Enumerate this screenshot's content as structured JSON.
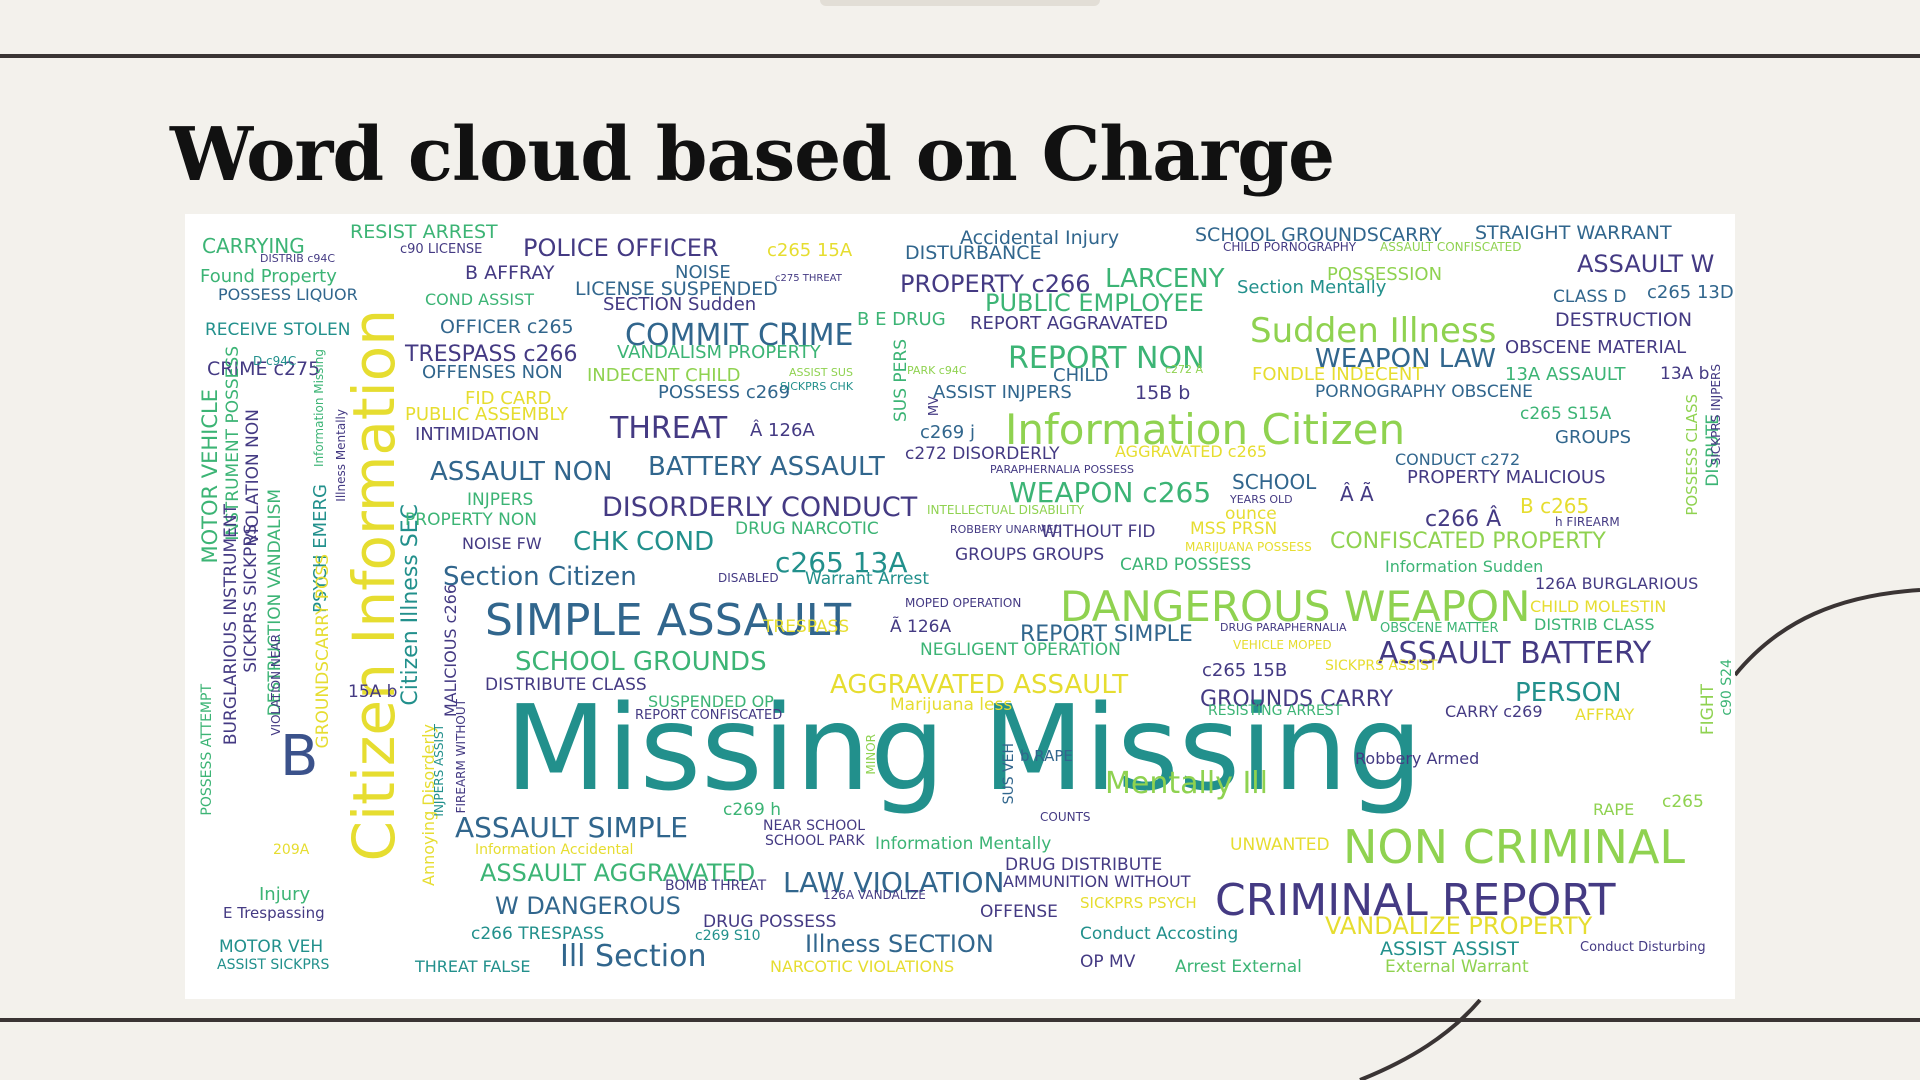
{
  "slide": {
    "title": "Word cloud based on Charge"
  },
  "palette": {
    "yellow": "#e6dd30",
    "light_green": "#8fd250",
    "green": "#3cb475",
    "teal": "#22908c",
    "blue": "#31668d",
    "indigo": "#443a83",
    "purple": "#440154",
    "mid_green": "#5ec862",
    "steel": "#3b528b",
    "bg_white": "#ffffff",
    "slide_bg": "#f3f1ec",
    "rule": "#3a3434"
  },
  "cloud": {
    "words": [
      "Missing Missing",
      "Citizen Information",
      "SIMPLE ASSAULT",
      "DANGEROUS WEAPON",
      "Information Citizen",
      "CRIMINAL REPORT",
      "NON CRIMINAL",
      "Sudden Illness",
      "B",
      "COMMIT CRIME",
      "ASSAULT BATTERY",
      "Mentally Ill",
      "DISORDERLY CONDUCT",
      "REPORT NON",
      "Ill Section",
      "Section Citizen",
      "SCHOOL GROUNDS",
      "AGGRAVATED ASSAULT",
      "ASSAULT SIMPLE",
      "LAW VIOLATION",
      "BATTERY ASSAULT",
      "THREAT",
      "c265 13A",
      "WEAPON c265",
      "ASSAULT NON",
      "ASSAULT AGGRAVATED",
      "WEAPON LAW",
      "POLICE OFFICER",
      "PUBLIC EMPLOYEE",
      "LARCENY",
      "CHK COND",
      "W DANGEROUS",
      "PROPERTY c266",
      "Illness SECTION",
      "ASSAULT W",
      "CONFISCATED PROPERTY",
      "TRESPASS c266",
      "PERSON",
      "GROUNDS CARRY",
      "REPORT SIMPLE",
      "VANDALIZE PROPERTY",
      "Citizen Illness SEC",
      "MOTOR VEHICLE",
      "CARRYING",
      "RESIST ARREST",
      "Accidental Injury",
      "SCHOOL GROUNDSCARRY",
      "STRAIGHT WARRANT",
      "DISTURBANCE",
      "c265 15A",
      "B AFFRAY",
      "NOISE",
      "Found Property",
      "POSSESS LIQUOR",
      "LICENSE SUSPENDED",
      "SECTION Sudden",
      "COND ASSIST",
      "RECEIVE STOLEN",
      "OFFICER c265",
      "VANDALISM PROPERTY",
      "B E DRUG",
      "REPORT AGGRAVATED",
      "DESTRUCTION",
      "OBSCENE MATERIAL",
      "CRIME c275",
      "OFFENSES NON",
      "INDECENT CHILD",
      "CHILD",
      "FONDLE INDECENT",
      "13A ASSAULT",
      "POSSESS c269",
      "ASSIST INJPERS",
      "15B b",
      "PORNOGRAPHY OBSCENE",
      "FID CARD",
      "PUBLIC ASSEMBLY",
      "INTIMIDATION",
      "Â 126A",
      "c269 j",
      "c265 S15A",
      "GROUPS",
      "c272 DISORDERLY",
      "AGGRAVATED c265",
      "CONDUCT c272",
      "SCHOOL",
      "PROPERTY MALICIOUS",
      "INJPERS",
      "PROPERTY NON",
      "NOISE FW",
      "DRUG NARCOTIC",
      "WITHOUT FID",
      "MSS PRSN",
      "c266 Â",
      "B c265",
      "GROUPS GROUPS",
      "CARD POSSESS",
      "Information Sudden",
      "126A BURGLARIOUS",
      "Warrant Arrest",
      "CHILD MOLESTIN",
      "DISTRIB CLASS",
      "TRESPASS",
      "NEGLIGENT OPERATION",
      "c265 15B",
      "SICKPRS ASSIST",
      "DISTRIBUTE CLASS",
      "15A b",
      "SUSPENDED OP",
      "REPORT CONFISCATED",
      "Marijuana less",
      "CARRY c269",
      "AFFRAY",
      "SUS VEH",
      "b RAPE",
      "Robbery Armed",
      "c269 h",
      "RAPE",
      "c265",
      "NEAR SCHOOL",
      "SCHOOL PARK",
      "Information Mentally",
      "UNWANTED",
      "Information Accidental",
      "209A",
      "DRUG DISTRIBUTE",
      "AMMUNITION WITHOUT",
      "BOMB THREAT",
      "126A VANDALIZE",
      "SICKPRS PSYCH",
      "Injury",
      "E Trespassing",
      "DRUG POSSESS",
      "OFFENSE",
      "c266 TRESPASS",
      "c269 S10",
      "Conduct Accosting",
      "ASSIST ASSIST",
      "Conduct Disturbing",
      "MOTOR VEH",
      "ASSIST SICKPRS",
      "THREAT FALSE",
      "NARCOTIC VIOLATIONS",
      "OP MV",
      "Arrest External",
      "External Warrant",
      "CLASS D",
      "c265 13D",
      "Section Mentally",
      "POSSESSION",
      "INSTRUMENT POSSESS",
      "VIOLATION NON",
      "DESTRUCTION VANDALISM",
      "PSYCH EMERG",
      "BURGLARIOUS INSTRUMENT",
      "SICKPRS SICKPRS",
      "GROUNDSCARRY POSS",
      "POSSESS ATTEMPT",
      "Annoying Disorderly",
      "MALICIOUS c266",
      "SUS PERS",
      "POSSESS CLASS",
      "DISPUTE",
      "FIGHT",
      "c90 S24",
      "MINOR",
      "Illness Mentally",
      "Information Missing",
      "INJPERS ASSIST",
      "FIREARM WITHOUT",
      "VIOLATION NEAR",
      "CHILD PORNOGRAPHY",
      "ASSAULT CONFISCATED",
      "DISTRIB c94C",
      "c90 LICENSE",
      "c275 THREAT",
      "D c94C",
      "ASSIST SUS",
      "PARK c94C",
      "SICKPRS CHK",
      "c272 Â",
      "PARAPHERNALIA POSSESS",
      "YEARS OLD",
      "Â Ã",
      "ounce",
      "MARIJUANA POSSESS",
      "h FIREARM",
      "INTELLECTUAL DISABILITY",
      "ROBBERY UNARMED",
      "DISABLED",
      "MOPED OPERATION",
      "Ã 126A",
      "DRUG PARAPHERNALIA",
      "OBSCENE MATTER",
      "VEHICLE MOPED",
      "RESISTING ARREST",
      "COUNTS",
      "MV",
      "13A b",
      "SICKPRS INJPERS"
    ]
  }
}
